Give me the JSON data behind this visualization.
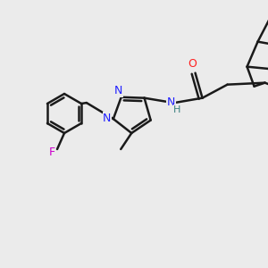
{
  "background_color": "#ebebeb",
  "bond_color": "#1a1a1a",
  "bond_width": 1.8,
  "heteroatom_colors": {
    "N": "#2020ff",
    "O": "#ff2020",
    "F": "#cc00cc",
    "H": "#3a8080"
  },
  "figsize": [
    3.0,
    3.0
  ],
  "dpi": 100
}
